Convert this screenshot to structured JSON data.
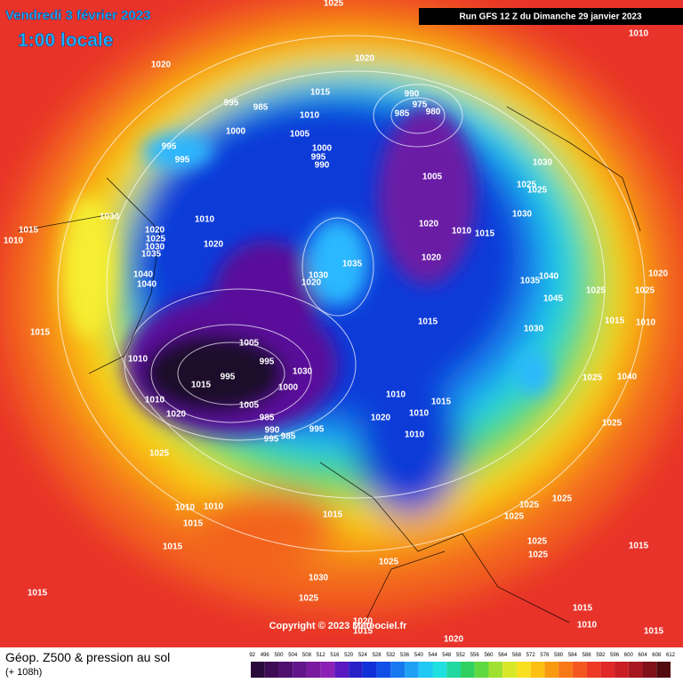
{
  "header": {
    "date": "Vendredi 3 février 2023",
    "time": "1:00 locale",
    "run": "Run GFS 12 Z du Dimanche 29 janvier 2023"
  },
  "copyright": "Copyright © 2023 Meteociel.fr",
  "footer": {
    "title": "Géop. Z500 & pression au sol",
    "lead": "(+ 108h)"
  },
  "legend": {
    "ticks": [
      492,
      496,
      500,
      504,
      508,
      512,
      516,
      520,
      524,
      528,
      532,
      536,
      540,
      544,
      548,
      552,
      556,
      560,
      564,
      568,
      572,
      576,
      580,
      584,
      588,
      592,
      596,
      600,
      604,
      608,
      612
    ]
  },
  "map": {
    "pressure_labels": [
      1025,
      1010,
      1020,
      1020,
      1015,
      995,
      985,
      990,
      975,
      985,
      980,
      1010,
      1000,
      1005,
      995,
      995,
      1000,
      995,
      990,
      1030,
      1005,
      1025,
      1025,
      1030,
      1010,
      1030,
      1015,
      1010,
      1020,
      1025,
      1030,
      1035,
      1020,
      1020,
      1010,
      1015,
      1020,
      1035,
      1040,
      1040,
      1030,
      1020,
      1035,
      1040,
      1025,
      1020,
      1025,
      1045,
      1015,
      1015,
      1010,
      1030,
      1015,
      1005,
      1010,
      995,
      995,
      1030,
      1000,
      1015,
      1010,
      1025,
      1040,
      1010,
      1005,
      1015,
      1020,
      1020,
      1010,
      985,
      990,
      995,
      995,
      985,
      1010,
      1025,
      1025,
      1010,
      1010,
      1025,
      1025,
      1015,
      1015,
      1025,
      1025,
      1015,
      1025,
      1015,
      1025,
      1015,
      1030,
      1025,
      1015,
      1010,
      1020,
      1015,
      1020,
      1015
    ]
  }
}
